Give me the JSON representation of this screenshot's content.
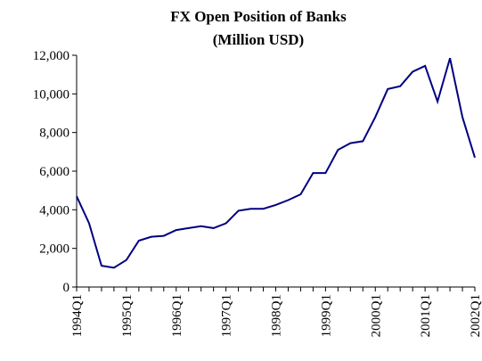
{
  "chart_data": {
    "type": "line",
    "title": "FX Open Position of Banks",
    "subtitle": "(Million USD)",
    "categories": [
      "1994Q1",
      null,
      null,
      null,
      "1995Q1",
      null,
      null,
      null,
      "1996Q1",
      null,
      null,
      null,
      "1997Q1",
      null,
      null,
      null,
      "1998Q1",
      null,
      null,
      null,
      "1999Q1",
      null,
      null,
      null,
      "2000Q1",
      null,
      null,
      null,
      "2001Q1",
      null,
      null,
      null,
      "2002Q1"
    ],
    "values": [
      4700,
      3300,
      1100,
      1000,
      1400,
      2400,
      2600,
      2650,
      2950,
      3050,
      3150,
      3050,
      3300,
      3950,
      4050,
      4050,
      4250,
      4500,
      4800,
      5900,
      5900,
      7100,
      7450,
      7550,
      8800,
      10250,
      10400,
      11150,
      11450,
      9600,
      11850,
      8800,
      6700
    ],
    "color": "#000080",
    "ylim": [
      0,
      12000
    ],
    "yticks": [
      0,
      {
        "value": 2000,
        "label": "2,000"
      },
      {
        "value": 4000,
        "label": "4,000"
      },
      {
        "value": 6000,
        "label": "6,000"
      },
      {
        "value": 8000,
        "label": "8,000"
      },
      {
        "value": 10000,
        "label": "10,000"
      },
      {
        "value": 12000,
        "label": "12,000"
      }
    ],
    "grid": false
  }
}
